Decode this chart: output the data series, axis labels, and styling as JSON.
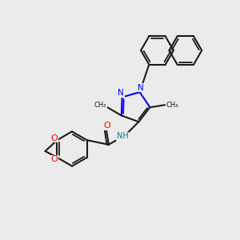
{
  "bg_color": "#ebebeb",
  "bond_color": "#1a1a1a",
  "n_color": "#0000ff",
  "o_color": "#ff0000",
  "nh_color": "#008080",
  "line_width": 1.5,
  "fig_size": [
    3.0,
    3.0
  ],
  "dpi": 100,
  "xlim": [
    0,
    10
  ],
  "ylim": [
    0,
    10
  ]
}
